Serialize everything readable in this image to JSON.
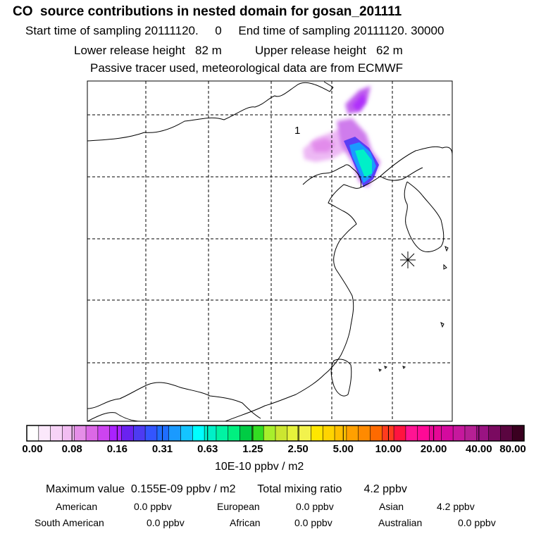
{
  "header": {
    "title": "CO  source contributions in nested domain for gosan_201111",
    "line1": "Start time of sampling 20111120.     0     End time of sampling 20111120. 30000",
    "line2": "Lower release height   82 m          Upper release height   62 m",
    "line3": "Passive tracer used, meteorological data are from ECMWF"
  },
  "map": {
    "plume_label": "1",
    "receptor_marker": "asterisk-receptor"
  },
  "colorbar": {
    "tick_labels": [
      "0.00",
      "0.08",
      "0.16",
      "0.31",
      "0.63",
      "1.25",
      "2.50",
      "5.00",
      "10.00",
      "20.00",
      "40.00",
      "80.00"
    ],
    "colors": [
      "#ffffff",
      "#fbe8fb",
      "#f7d3f7",
      "#f2bdf2",
      "#e58ee8",
      "#db68e6",
      "#cc44f0",
      "#aa22ff",
      "#6a22f0",
      "#4d3bf2",
      "#3355ff",
      "#1f6dff",
      "#1a9aff",
      "#14c4ff",
      "#00ffff",
      "#00f0c8",
      "#00f3a3",
      "#00f080",
      "#00cc44",
      "#33dd22",
      "#a8ef2c",
      "#cce630",
      "#e6f23a",
      "#f2f24d",
      "#ffe600",
      "#ffd400",
      "#ffc000",
      "#ffa000",
      "#ff8a00",
      "#ff6a00",
      "#ff3c1e",
      "#ff1440",
      "#ff1493",
      "#ff0a96",
      "#e60896",
      "#d40a9e",
      "#c6189d",
      "#b52094",
      "#9a1382",
      "#7a0a60",
      "#5a0540",
      "#3a0020"
    ],
    "unit_label": "10E-10 ppbv / m2"
  },
  "summary": {
    "max_line": "Maximum value  0.155E-09 ppbv / m2       Total mixing ratio       4.2 ppbv",
    "sources": [
      {
        "name": "American",
        "value": "0.0 ppbv"
      },
      {
        "name": "European",
        "value": "0.0 ppbv"
      },
      {
        "name": "Asian",
        "value": "4.2 ppbv"
      },
      {
        "name": "South American",
        "value": "0.0 ppbv"
      },
      {
        "name": "African",
        "value": "0.0 ppbv"
      },
      {
        "name": "Australian",
        "value": "0.0 ppbv"
      }
    ]
  }
}
